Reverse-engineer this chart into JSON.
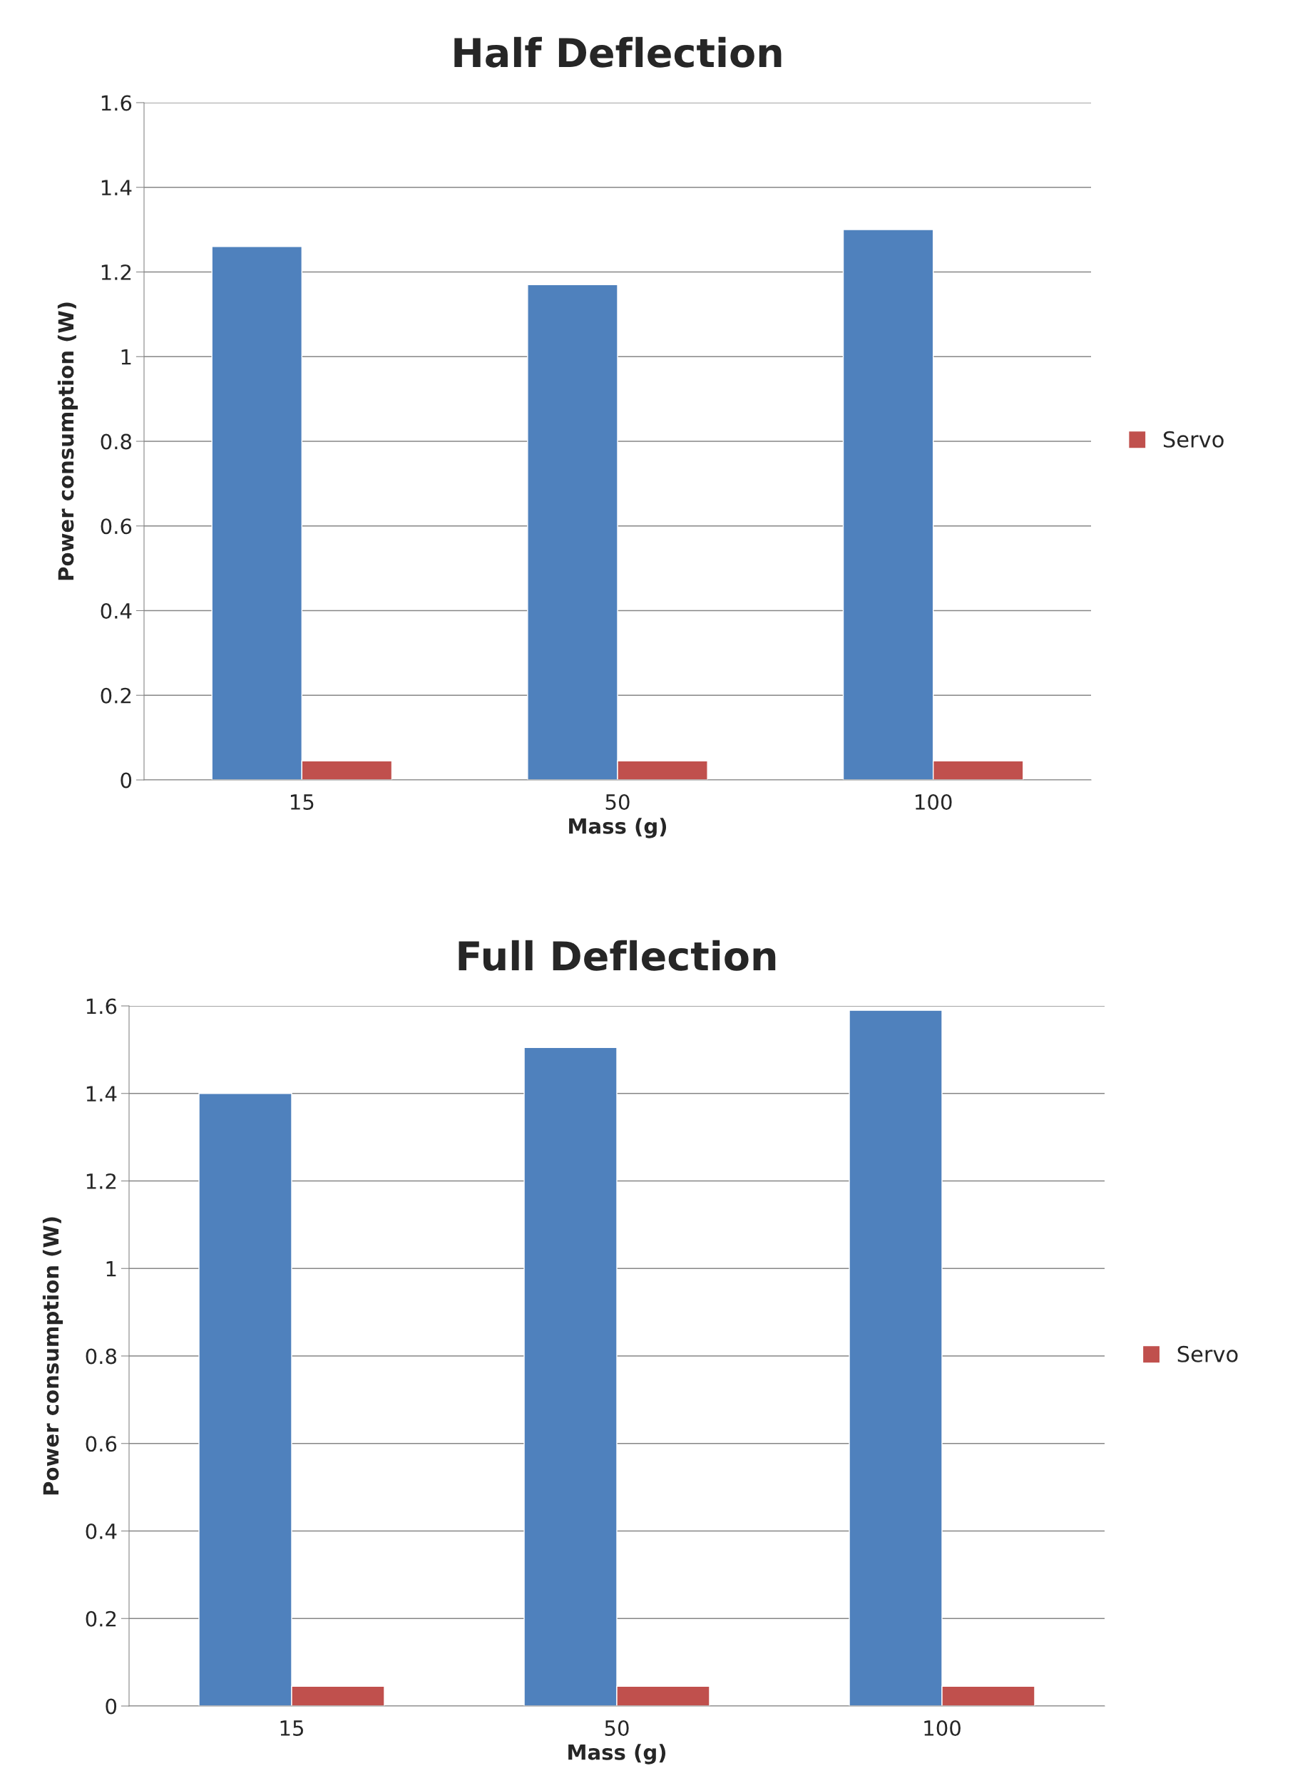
{
  "chart_data": [
    {
      "type": "bar",
      "title": "Half Deflection",
      "xlabel": "Mass (g)",
      "ylabel": "Power consumption (W)",
      "categories": [
        "15",
        "50",
        "100"
      ],
      "series": [
        {
          "color": "#4f81bd",
          "values": [
            1.26,
            1.17,
            1.3
          ]
        },
        {
          "name": "Servo",
          "color": "#c0504d",
          "values": [
            0.045,
            0.045,
            0.045
          ]
        }
      ],
      "ylim": [
        0,
        1.6
      ],
      "yticks": [
        0,
        0.2,
        0.4,
        0.6,
        0.8,
        1,
        1.2,
        1.4,
        1.6
      ],
      "grid": "y",
      "legend": "right"
    },
    {
      "type": "bar",
      "title": "Full Deflection",
      "xlabel": "Mass (g)",
      "ylabel": "Power consumption (W)",
      "categories": [
        "15",
        "50",
        "100"
      ],
      "series": [
        {
          "color": "#4f81bd",
          "values": [
            1.4,
            1.505,
            1.59
          ]
        },
        {
          "name": "Servo",
          "color": "#c0504d",
          "values": [
            0.045,
            0.045,
            0.045
          ]
        }
      ],
      "ylim": [
        0,
        1.6
      ],
      "yticks": [
        0,
        0.2,
        0.4,
        0.6,
        0.8,
        1,
        1.2,
        1.4,
        1.6
      ],
      "grid": "y",
      "legend": "right"
    }
  ]
}
